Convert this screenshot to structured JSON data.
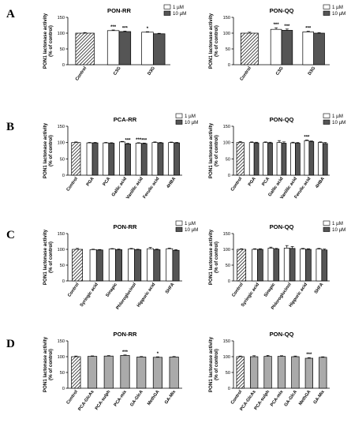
{
  "colors": {
    "control_hatch": "#000000",
    "white_bar": "#ffffff",
    "dark_bar": "#555555",
    "grey_bar": "#aaaaaa",
    "axis": "#000000"
  },
  "legend": {
    "low": "1 µM",
    "high": "10 µM"
  },
  "chart_data": [
    {
      "panel": "A",
      "title": "PON-RR",
      "type": "bar",
      "ylabel": "PON1 lactonase activity\n(% of control)",
      "ylim": [
        0,
        150
      ],
      "yticks": [
        0,
        50,
        100,
        150
      ],
      "legend": true,
      "categories": [
        "Control",
        "C3G",
        "D3G"
      ],
      "series": [
        {
          "name": "1 µM",
          "values": [
            null,
            108,
            103
          ],
          "errors": [
            null,
            2,
            1.5
          ],
          "sig": [
            null,
            "***",
            "*"
          ]
        },
        {
          "name": "10 µM",
          "values": [
            null,
            105,
            98
          ],
          "errors": [
            null,
            1.5,
            1.5
          ],
          "sig": [
            null,
            "***",
            null
          ]
        }
      ],
      "control": {
        "value": 100,
        "error": 2
      }
    },
    {
      "panel": "",
      "title": "PON-QQ",
      "type": "bar",
      "ylabel": "PON1 lactonase activity\n(% of control)",
      "ylim": [
        0,
        150
      ],
      "yticks": [
        0,
        50,
        100,
        150
      ],
      "legend": true,
      "categories": [
        "Control",
        "C3G",
        "D3G"
      ],
      "series": [
        {
          "name": "1 µM",
          "values": [
            null,
            112,
            104
          ],
          "errors": [
            null,
            5,
            2
          ],
          "sig": [
            null,
            "***",
            "***"
          ]
        },
        {
          "name": "10 µM",
          "values": [
            null,
            109,
            100
          ],
          "errors": [
            null,
            4,
            1.5
          ],
          "sig": [
            null,
            "***",
            null
          ]
        }
      ],
      "control": {
        "value": 100,
        "error": 3
      }
    },
    {
      "panel": "B",
      "title": "PCA-RR",
      "type": "bar",
      "ylabel": "PON1 lactonase activity\n(% of control)",
      "ylim": [
        0,
        150
      ],
      "yticks": [
        0,
        50,
        100,
        150
      ],
      "legend": true,
      "categories": [
        "Control",
        "PGA",
        "PCA",
        "Gallic acid",
        "Vanillic acid",
        "Ferulic acid",
        "4HBA"
      ],
      "series": [
        {
          "name": "1 µM",
          "values": [
            null,
            99,
            99,
            102,
            98,
            100,
            100
          ],
          "errors": [
            null,
            1.5,
            1.5,
            1.5,
            1.5,
            2,
            1.5
          ],
          "sig": [
            null,
            null,
            null,
            null,
            "***",
            null,
            null
          ]
        },
        {
          "name": "10 µM",
          "values": [
            null,
            99,
            98,
            96,
            97,
            99,
            99
          ],
          "errors": [
            null,
            1.5,
            1.5,
            1.5,
            1.5,
            1.5,
            1.5
          ],
          "sig": [
            null,
            null,
            null,
            "***",
            "***",
            null,
            null
          ]
        }
      ],
      "control": {
        "value": 100,
        "error": 2
      }
    },
    {
      "panel": "",
      "title": "PON-QQ",
      "type": "bar",
      "ylabel": "PON1 lactonase activity\n(% of control)",
      "ylim": [
        0,
        150
      ],
      "yticks": [
        0,
        50,
        100,
        150
      ],
      "legend": true,
      "categories": [
        "Control",
        "PGA",
        "PCA",
        "Gallic acid",
        "Vanillic acid",
        "Ferulic acid",
        "4HBA"
      ],
      "series": [
        {
          "name": "1 µM",
          "values": [
            null,
            100,
            100,
            100,
            99,
            106,
            100
          ],
          "errors": [
            null,
            2,
            2,
            6,
            2,
            2,
            2
          ],
          "sig": [
            null,
            null,
            null,
            null,
            null,
            "***",
            null
          ]
        },
        {
          "name": "10 µM",
          "values": [
            null,
            99,
            99,
            98,
            98,
            103,
            97
          ],
          "errors": [
            null,
            2,
            2,
            4,
            2,
            2,
            3
          ],
          "sig": [
            null,
            null,
            null,
            null,
            null,
            null,
            null
          ]
        }
      ],
      "control": {
        "value": 100,
        "error": 3
      }
    },
    {
      "panel": "C",
      "title": "PON-RR",
      "type": "bar",
      "ylabel": "PON1 lactonase activity\n(% of control)",
      "ylim": [
        0,
        150
      ],
      "yticks": [
        0,
        50,
        100,
        150
      ],
      "legend": true,
      "categories": [
        "Control",
        "Syringic acid",
        "Sinapic",
        "Phloroglucinol",
        "Hippuric acid",
        "SHFA"
      ],
      "series": [
        {
          "name": "1 µM",
          "values": [
            null,
            99,
            101,
            101,
            102,
            102
          ],
          "errors": [
            null,
            1.5,
            1.5,
            2,
            4,
            2
          ],
          "sig": [
            null,
            null,
            null,
            null,
            null,
            null
          ]
        },
        {
          "name": "10 µM",
          "values": [
            null,
            98,
            99,
            99,
            99,
            97
          ],
          "errors": [
            null,
            1.5,
            2,
            1.5,
            2,
            2
          ],
          "sig": [
            null,
            null,
            null,
            null,
            null,
            null
          ]
        }
      ],
      "control": {
        "value": 100,
        "error": 3
      }
    },
    {
      "panel": "",
      "title": "PON-QQ",
      "type": "bar",
      "ylabel": "PON1 lactonase activity\n(% of control)",
      "ylim": [
        0,
        150
      ],
      "yticks": [
        0,
        50,
        100,
        150
      ],
      "legend": true,
      "categories": [
        "Control",
        "Syringic acid",
        "Sinapic",
        "Phloroglucinol",
        "Hippuric acid",
        "SHFA"
      ],
      "series": [
        {
          "name": "1 µM",
          "values": [
            null,
            100,
            104,
            104,
            101,
            101
          ],
          "errors": [
            null,
            2,
            3,
            8,
            2,
            2
          ],
          "sig": [
            null,
            null,
            null,
            null,
            null,
            null
          ]
        },
        {
          "name": "10 µM",
          "values": [
            null,
            100,
            101,
            103,
            100,
            98
          ],
          "errors": [
            null,
            2,
            2,
            6,
            2,
            3
          ],
          "sig": [
            null,
            null,
            null,
            null,
            null,
            null
          ]
        }
      ],
      "control": {
        "value": 100,
        "error": 2
      }
    },
    {
      "panel": "D",
      "title": "PON-RR",
      "type": "bar",
      "ylabel": "PON1 lactonase activity\n(% of control)",
      "ylim": [
        0,
        150
      ],
      "yticks": [
        0,
        50,
        100,
        150
      ],
      "legend": false,
      "categories": [
        "Control",
        "PCA-GlcAs",
        "PCA-sulph",
        "PCA-mix",
        "GA-GlcA",
        "MethGA",
        "GA-Mix"
      ],
      "series": [
        {
          "name": "",
          "values": [
            null,
            101,
            102,
            104,
            99,
            98,
            99
          ],
          "errors": [
            null,
            1.5,
            1.5,
            1.5,
            1.5,
            1.5,
            1.5
          ],
          "sig": [
            null,
            null,
            null,
            "***",
            null,
            "*",
            null
          ]
        }
      ],
      "control": {
        "value": 100,
        "error": 2
      }
    },
    {
      "panel": "",
      "title": "PON-QQ",
      "type": "bar",
      "ylabel": "PON1 lactonase activity\n(% of control)",
      "ylim": [
        0,
        150
      ],
      "yticks": [
        0,
        50,
        100,
        150
      ],
      "legend": false,
      "categories": [
        "Control",
        "PCA-GlcAs",
        "PCA-sulph",
        "PCA-mix",
        "GA-GlcA",
        "MethGA",
        "GA-Mix"
      ],
      "series": [
        {
          "name": "",
          "values": [
            null,
            100,
            101,
            101,
            100,
            95,
            98
          ],
          "errors": [
            null,
            3,
            3,
            2,
            2,
            2,
            1.5
          ],
          "sig": [
            null,
            null,
            null,
            null,
            null,
            "***",
            null
          ]
        }
      ],
      "control": {
        "value": 100,
        "error": 2
      }
    }
  ]
}
